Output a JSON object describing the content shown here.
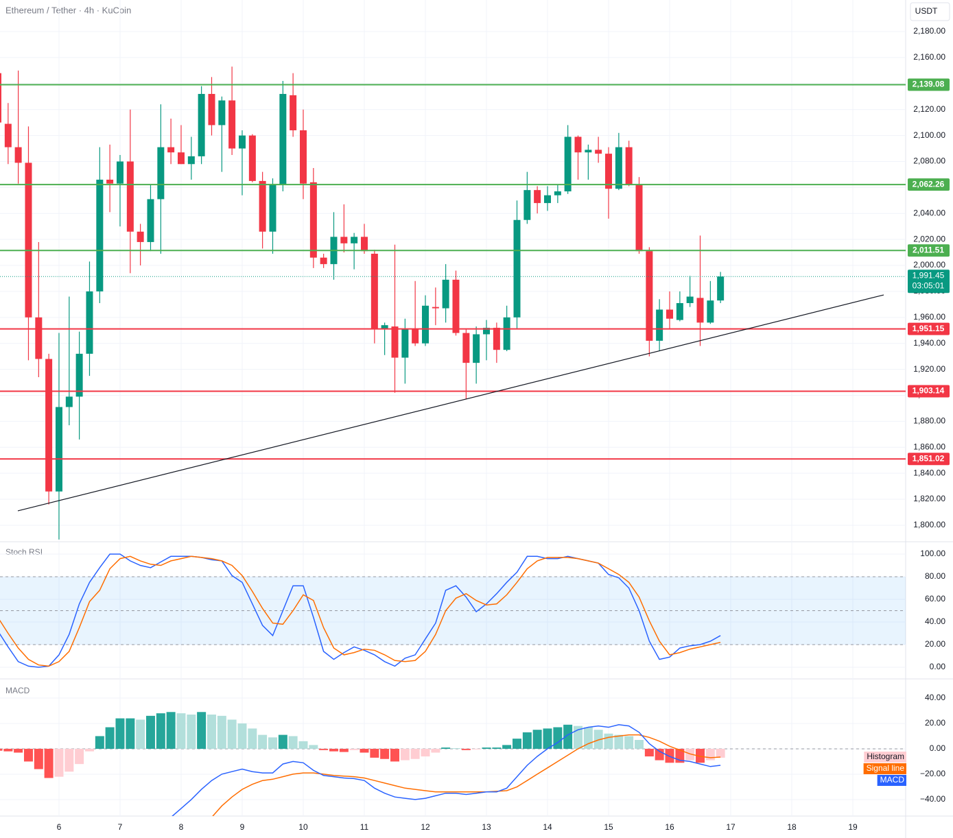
{
  "chart_data": [
    {
      "type": "candlestick",
      "title": "Ethereum / Tether · 4h · KuCoin",
      "unit": "USDT",
      "x": [
        5,
        5.167,
        5.333,
        5.5,
        5.667,
        5.833,
        6,
        6.167,
        6.333,
        6.5,
        6.667,
        6.833,
        7,
        7.167,
        7.333,
        7.5,
        7.667,
        7.833,
        8,
        8.167,
        8.333,
        8.5,
        8.667,
        8.833,
        9,
        9.167,
        9.333,
        9.5,
        9.667,
        9.833,
        10,
        10.167,
        10.333,
        10.5,
        10.667,
        10.833,
        11,
        11.167,
        11.333,
        11.5,
        11.667,
        11.833,
        12,
        12.167,
        12.333,
        12.5,
        12.667,
        12.833,
        13,
        13.167,
        13.333,
        13.5,
        13.667,
        13.833,
        14,
        14.167,
        14.333,
        14.5,
        14.667,
        14.833,
        15,
        15.167,
        15.333,
        15.5,
        15.667,
        15.833,
        16,
        16.167,
        16.333,
        16.5,
        16.667,
        16.833
      ],
      "xlim": [
        5.034,
        19.865
      ],
      "ylim": [
        1787.3,
        2204.3
      ],
      "yticks": [
        {
          "value": 1800,
          "label": "1,800.00"
        },
        {
          "value": 1820,
          "label": "1,820.00"
        },
        {
          "value": 1840,
          "label": "1,840.00"
        },
        {
          "value": 1860,
          "label": "1,860.00"
        },
        {
          "value": 1880,
          "label": "1,880.00"
        },
        {
          "value": 1900,
          "label": "1,900.00"
        },
        {
          "value": 1920,
          "label": "1,920.00"
        },
        {
          "value": 1940,
          "label": "1,940.00"
        },
        {
          "value": 1960,
          "label": "1,960.00"
        },
        {
          "value": 1980,
          "label": "1,980.00"
        },
        {
          "value": 2000,
          "label": "2,000.00"
        },
        {
          "value": 2020,
          "label": "2,020.00"
        },
        {
          "value": 2040,
          "label": "2,040.00"
        },
        {
          "value": 2060,
          "label": "2,060.00"
        },
        {
          "value": 2080,
          "label": "2,080.00"
        },
        {
          "value": 2100,
          "label": "2,100.00"
        },
        {
          "value": 2120,
          "label": "2,120.00"
        },
        {
          "value": 2140,
          "label": "2,140.00"
        },
        {
          "value": 2160,
          "label": "2,160.00"
        },
        {
          "value": 2180,
          "label": "2,180.00"
        }
      ],
      "open": [
        2148,
        2109,
        2091,
        2079,
        1960,
        1928,
        1826,
        1891,
        1899,
        1932,
        1980,
        2066,
        2063,
        2080,
        2026,
        2018,
        2051,
        2091,
        2087,
        2078,
        2084,
        2132,
        2108,
        2127,
        2090,
        2100,
        2065,
        2026,
        2062,
        2131,
        2104,
        2064,
        2006,
        2001,
        2022,
        2017,
        2022,
        2009,
        1951,
        1953,
        1929,
        1951,
        1940,
        1968,
        1967,
        1989,
        1948,
        1925,
        1947,
        1952,
        1935,
        1960,
        2035,
        2058,
        2048,
        2054,
        2057,
        2099,
        2087,
        2089,
        2086,
        2059,
        2091,
        2062,
        2011,
        1942,
        1966,
        1958,
        1971,
        1975,
        1956,
        1973
      ],
      "high": [
        2150,
        2125,
        2150,
        2107,
        2018,
        1932,
        1948,
        1976,
        1949,
        2003,
        2091,
        2093,
        2085,
        2120,
        2032,
        2062,
        2124,
        2113,
        2108,
        2099,
        2138,
        2145,
        2130,
        2153,
        2104,
        2101,
        2072,
        2067,
        2142,
        2148,
        2120,
        2075,
        2009,
        2041,
        2047,
        2025,
        2032,
        2012,
        1956,
        2016,
        1959,
        1988,
        1977,
        1983,
        2001,
        1996,
        1951,
        1953,
        1958,
        1956,
        1969,
        2050,
        2072,
        2061,
        2061,
        2062,
        2108,
        2100,
        2093,
        2099,
        2091,
        2102,
        2096,
        2068,
        2014,
        1974,
        1980,
        1980,
        1992,
        2023,
        1988,
        1995
      ],
      "low": [
        2105,
        2078,
        2063,
        1927,
        1914,
        1816,
        1789,
        1877,
        1866,
        1915,
        1971,
        2041,
        2030,
        1994,
        2000,
        2011,
        2009,
        2078,
        2078,
        2066,
        2078,
        2100,
        2072,
        2085,
        2054,
        2064,
        2013,
        2009,
        2057,
        2099,
        2051,
        1998,
        1998,
        1989,
        2010,
        1997,
        2009,
        1940,
        1931,
        1902,
        1909,
        1938,
        1938,
        1954,
        1956,
        1946,
        1897,
        1909,
        1927,
        1925,
        1934,
        1951,
        2032,
        2040,
        2042,
        2048,
        2055,
        2066,
        2066,
        2079,
        2036,
        2058,
        2061,
        2009,
        1930,
        1934,
        1951,
        1957,
        1968,
        1938,
        1955,
        1971
      ],
      "close": [
        2110,
        2091,
        2079,
        1960,
        1928,
        1826,
        1891,
        1899,
        1932,
        1980,
        2066,
        2063,
        2080,
        2026,
        2018,
        2051,
        2091,
        2087,
        2078,
        2084,
        2132,
        2108,
        2127,
        2090,
        2100,
        2065,
        2026,
        2062,
        2132,
        2104,
        2063,
        2006,
        2001,
        2022,
        2017,
        2022,
        2011,
        1951,
        1954,
        1929,
        1951,
        1940,
        1969,
        1967,
        1989,
        1948,
        1925,
        1947,
        1952,
        1935,
        1960,
        2035,
        2058,
        2048,
        2054,
        2057,
        2099,
        2087,
        2089,
        2086,
        2059,
        2091,
        2062,
        2011,
        1942,
        1966,
        1959,
        1971,
        1976,
        1956,
        1973,
        1991.45
      ],
      "up_color": "#089981",
      "down_color": "#f23645",
      "grid": true,
      "levels": [
        {
          "value": 2139.08,
          "label": "2,139.08",
          "color": "#4caf50"
        },
        {
          "value": 2062.26,
          "label": "2,062.26",
          "color": "#4caf50"
        },
        {
          "value": 2011.51,
          "label": "2,011.51",
          "color": "#4caf50"
        },
        {
          "value": 1951.15,
          "label": "1,951.15",
          "color": "#f23645"
        },
        {
          "value": 1903.14,
          "label": "1,903.14",
          "color": "#f23645"
        },
        {
          "value": 1851.02,
          "label": "1,851.02",
          "color": "#f23645"
        }
      ],
      "last": {
        "value": 1991.45,
        "label": "1,991.45",
        "countdown": "03:05:01",
        "color": "#089981"
      },
      "trendline": {
        "x": [
          5.326,
          19.506
        ],
        "y": [
          1811.1,
          1977.3
        ],
        "color": "#131722"
      }
    },
    {
      "type": "line",
      "title": "Stoch RSI",
      "ylim": [
        -10.3,
        110.9
      ],
      "yticks": [
        {
          "value": 0,
          "label": "0.00"
        },
        {
          "value": 20,
          "label": "20.00"
        },
        {
          "value": 40,
          "label": "40.00"
        },
        {
          "value": 60,
          "label": "60.00"
        },
        {
          "value": 80,
          "label": "80.00"
        },
        {
          "value": 100,
          "label": "100.00"
        }
      ],
      "band": [
        20,
        80
      ],
      "dashed": [
        20,
        50,
        80
      ],
      "series": [
        {
          "color": "#2962ff",
          "values": [
            32,
            18,
            5,
            1,
            0,
            1,
            11,
            29,
            56,
            75,
            88,
            100,
            100,
            94,
            90,
            88,
            93,
            98,
            98,
            98,
            97,
            95,
            94,
            81,
            75,
            56,
            37,
            28,
            50,
            72,
            72,
            44,
            14,
            7,
            13,
            18,
            15,
            11,
            5,
            1,
            8,
            11,
            25,
            39,
            68,
            72,
            62,
            49,
            56,
            65,
            75,
            84,
            98,
            98,
            96,
            96,
            98,
            96,
            94,
            92,
            82,
            79,
            70,
            50,
            23,
            7,
            9,
            17,
            19,
            20,
            23,
            28
          ]
        },
        {
          "color": "#ff6d00",
          "values": [
            44,
            30,
            17,
            7,
            2,
            1,
            5,
            14,
            35,
            58,
            68,
            87,
            96,
            98,
            94,
            91,
            90,
            94,
            96,
            98,
            97,
            96,
            94,
            90,
            81,
            67,
            52,
            39,
            38,
            50,
            64,
            59,
            35,
            17,
            11,
            13,
            16,
            15,
            11,
            6,
            5,
            6,
            14,
            29,
            50,
            61,
            65,
            59,
            55,
            56,
            64,
            75,
            87,
            94,
            97,
            97,
            97,
            96,
            94,
            92,
            87,
            82,
            75,
            62,
            41,
            23,
            11,
            13,
            16,
            18,
            20,
            22
          ]
        }
      ]
    },
    {
      "type": "macd",
      "title": "MACD",
      "ylim": [
        -53,
        55.1
      ],
      "yticks": [
        {
          "value": -40,
          "label": "−40.00"
        },
        {
          "value": -20,
          "label": "−20.00"
        },
        {
          "value": 0,
          "label": "0.00"
        },
        {
          "value": 20,
          "label": "20.00"
        },
        {
          "value": 40,
          "label": "40.00"
        }
      ],
      "dashed": [
        0
      ],
      "xticks": [
        6,
        7,
        8,
        9,
        10,
        11,
        12,
        13,
        14,
        15,
        16,
        17,
        18,
        19
      ],
      "histogram": {
        "name": "Histogram",
        "colors": {
          "pos_up": "#26a69a",
          "pos_down": "#b2dfdb",
          "neg_down": "#ff5252",
          "neg_up": "#ffcdd2"
        },
        "values": [
          -1.5,
          -2,
          -3,
          -10,
          -16,
          -23,
          -22,
          -18,
          -12,
          -2,
          10,
          17,
          24,
          24,
          23,
          26,
          28,
          29,
          28,
          27,
          29,
          27,
          26,
          23,
          20,
          16,
          11,
          9,
          11,
          10,
          6,
          3,
          -1,
          -2,
          -2.5,
          -1,
          -3,
          -7,
          -8,
          -10,
          -9,
          -8,
          -6,
          -3,
          1,
          0.5,
          -1,
          -0.5,
          1,
          1,
          3,
          8,
          13,
          15,
          16,
          17,
          19,
          18,
          17,
          15,
          12,
          11,
          10,
          7,
          -6,
          -9,
          -11,
          -11,
          -9,
          -11,
          -9,
          -7
        ]
      },
      "series": [
        {
          "name": "Signal line",
          "color": "#ff6d00",
          "values": [
            null,
            null,
            null,
            null,
            null,
            null,
            null,
            null,
            null,
            null,
            null,
            null,
            null,
            null,
            null,
            null,
            null,
            null,
            null,
            null,
            null,
            -54,
            -45,
            -38,
            -32,
            -28,
            -25,
            -24,
            -22,
            -20,
            -19,
            -19,
            -20,
            -21,
            -21.5,
            -22,
            -23,
            -25,
            -27,
            -29,
            -31,
            -32,
            -33,
            -34,
            -34,
            -34,
            -34,
            -34,
            -34,
            -33.5,
            -33,
            -30,
            -25,
            -20,
            -15,
            -10,
            -5,
            0,
            4,
            7,
            9,
            10,
            11,
            11,
            9,
            6,
            2,
            -1,
            -4,
            -6,
            -7,
            -6.5
          ]
        },
        {
          "name": "MACD",
          "color": "#2962ff",
          "values": [
            null,
            null,
            null,
            null,
            null,
            null,
            null,
            null,
            null,
            null,
            null,
            null,
            null,
            null,
            null,
            null,
            null,
            -54,
            -47,
            -40,
            -32,
            -25,
            -20,
            -18,
            -16,
            -18,
            -19,
            -19,
            -12,
            -10,
            -11,
            -17,
            -21,
            -22,
            -23,
            -23.5,
            -25,
            -31,
            -35,
            -38,
            -39,
            -40,
            -39,
            -37,
            -35,
            -35,
            -36,
            -35,
            -34,
            -34,
            -31,
            -22,
            -13,
            -6,
            0,
            5,
            11,
            15,
            17,
            18,
            17,
            19,
            18,
            13,
            4,
            -2,
            -6,
            -9,
            -10,
            -12,
            -14,
            -13
          ]
        }
      ]
    }
  ]
}
